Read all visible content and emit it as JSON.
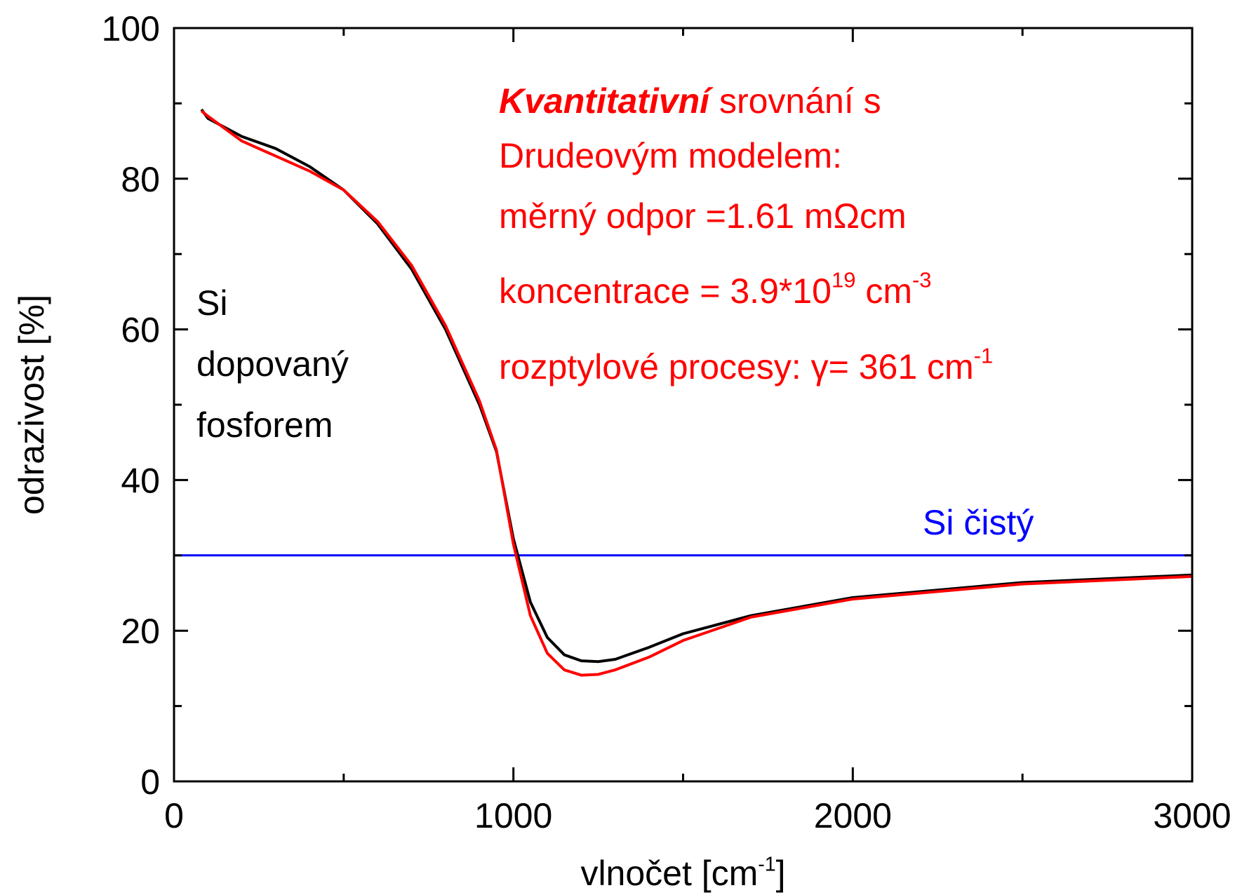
{
  "chart_data": {
    "type": "line",
    "xlabel": [
      {
        "text": "vlnočet [cm"
      },
      {
        "text": "-1",
        "style": "sup"
      },
      {
        "text": "]"
      }
    ],
    "ylabel": "odrazivost [%]",
    "xlim": [
      0,
      3000
    ],
    "ylim": [
      0,
      100
    ],
    "xticks": [
      0,
      1000,
      2000,
      3000
    ],
    "yticks": [
      0,
      20,
      40,
      60,
      80,
      100
    ],
    "xminor": [
      500,
      1500,
      2500
    ],
    "yminor": [
      10,
      30,
      50,
      70,
      90
    ],
    "series": [
      {
        "color": "#000000",
        "x": [
          81,
          100,
          200,
          300,
          400,
          500,
          600,
          700,
          800,
          900,
          950,
          1000,
          1050,
          1100,
          1150,
          1200,
          1250,
          1300,
          1400,
          1500,
          1700,
          2000,
          2500,
          3000
        ],
        "values": [
          89.2,
          88,
          85.6,
          84,
          81.6,
          78.5,
          74,
          68,
          60,
          50,
          43.8,
          32.2,
          23.8,
          19.1,
          16.8,
          16,
          15.9,
          16.2,
          17.8,
          19.6,
          22,
          24.4,
          26.4,
          27.4
        ]
      },
      {
        "color": "#ff0000",
        "x": [
          81,
          100,
          200,
          300,
          400,
          500,
          600,
          700,
          800,
          900,
          950,
          1000,
          1050,
          1100,
          1150,
          1200,
          1250,
          1300,
          1400,
          1500,
          1700,
          2000,
          2500,
          3000
        ],
        "values": [
          89,
          88.3,
          85,
          83,
          81,
          78.5,
          74.3,
          68.5,
          60.5,
          50.5,
          44,
          31.5,
          22,
          17,
          14.8,
          14.1,
          14.2,
          14.8,
          16.5,
          18.7,
          21.8,
          24.2,
          26.2,
          27.2
        ]
      },
      {
        "color": "#0000ff",
        "x": [
          0,
          3000
        ],
        "values": [
          30,
          30
        ]
      }
    ],
    "annotations": [
      {
        "color": "#000000",
        "lines": [
          "Si",
          "dopovaný",
          "fosforem"
        ]
      },
      {
        "color": "#0000ff",
        "lines": [
          "Si čistý"
        ]
      },
      {
        "color": "#ff0000",
        "rich_lines": [
          [
            {
              "text": "Kvantitativní",
              "style": "bold-italic"
            },
            {
              "text": " srovnání s"
            }
          ],
          [
            {
              "text": "Drudeovým modelem:"
            }
          ],
          [
            {
              "text": "měrný odpor =1.61 mΩcm"
            }
          ],
          [
            {
              "text": "koncentrace = 3.9*10"
            },
            {
              "text": "19",
              "style": "sup"
            },
            {
              "text": " cm"
            },
            {
              "text": "-3",
              "style": "sup"
            }
          ],
          [
            {
              "text": "rozptylové procesy:  γ= 361 cm"
            },
            {
              "text": "-1",
              "style": "sup"
            }
          ]
        ]
      }
    ]
  }
}
